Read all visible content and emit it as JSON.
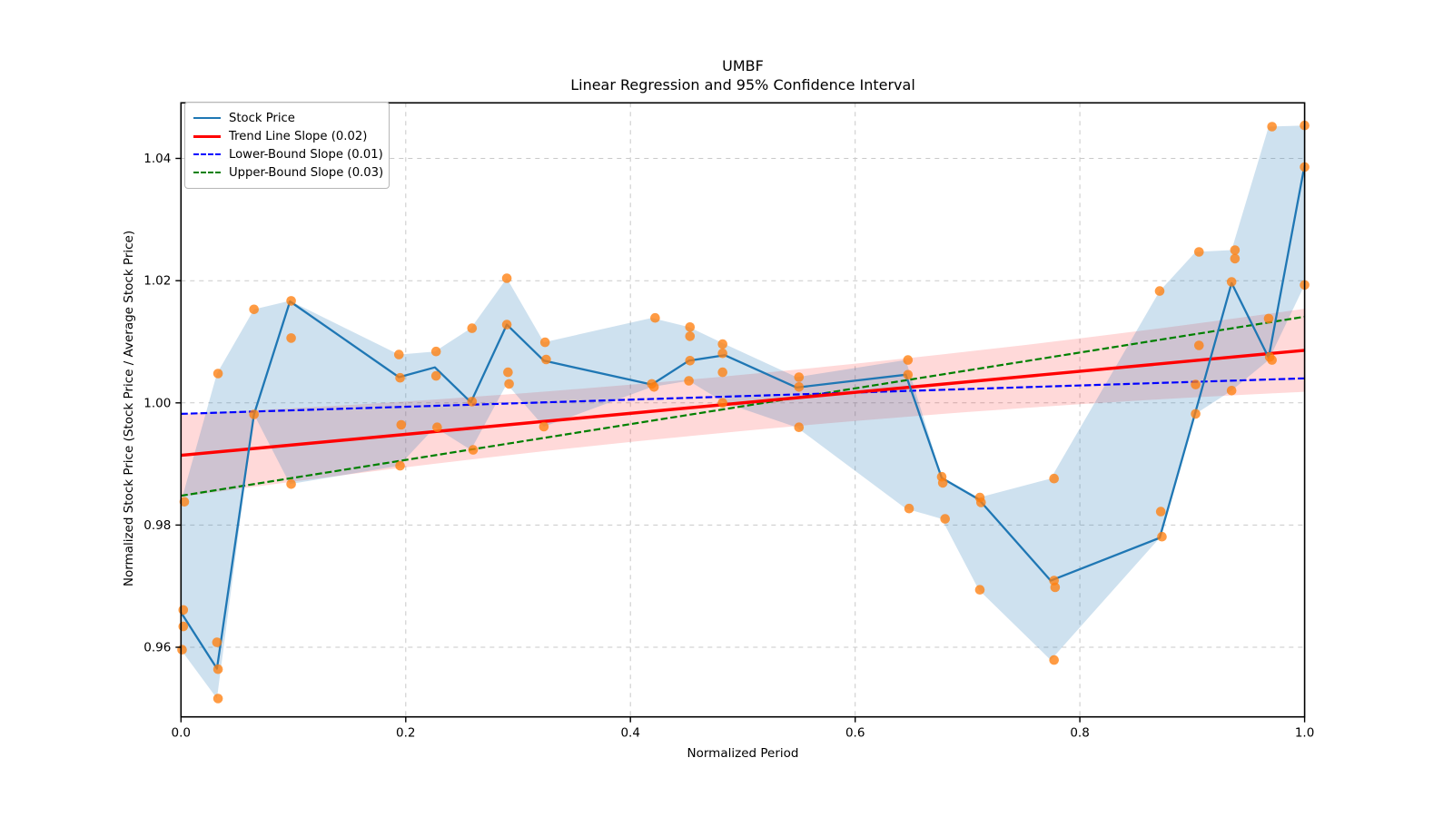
{
  "figure": {
    "title_line1": "UMBF",
    "title_line2": "Linear Regression and 95% Confidence Interval",
    "xlabel": "Normalized Period",
    "ylabel": "Normalized Stock Price (Stock Price / Average Stock Price)"
  },
  "chart_data": {
    "type": "line",
    "title": "UMBF\nLinear Regression and 95% Confidence Interval",
    "xlabel": "Normalized Period",
    "ylabel": "Normalized Stock Price (Stock Price / Average Stock Price)",
    "xlim": [
      0.0,
      1.0
    ],
    "ylim": [
      0.9486,
      1.0491
    ],
    "x_ticks": [
      0.0,
      0.2,
      0.4,
      0.6,
      0.8,
      1.0
    ],
    "x_tick_labels": [
      "0.0",
      "0.2",
      "0.4",
      "0.6",
      "0.8",
      "1.0"
    ],
    "y_ticks": [
      0.96,
      0.98,
      1.0,
      1.02,
      1.04
    ],
    "y_tick_labels": [
      "0.96",
      "0.98",
      "1.00",
      "1.02",
      "1.04"
    ],
    "grid": true,
    "legend_position": "upper left",
    "legend": [
      {
        "label": "Stock Price",
        "color": "#1f77b4",
        "style": "solid"
      },
      {
        "label": "Trend Line Slope (0.02)",
        "color": "#ff0000",
        "style": "solid-thick"
      },
      {
        "label": "Lower-Bound Slope (0.01)",
        "color": "#0000ff",
        "style": "dashed"
      },
      {
        "label": "Upper-Bound Slope (0.03)",
        "color": "#008000",
        "style": "dashed"
      }
    ],
    "colors": {
      "stock_line": "#1f77b4",
      "trend_line": "#ff0000",
      "lower_bound": "#0000ff",
      "upper_bound": "#008000",
      "scatter": "#ff7f0e",
      "stock_band_fill": "rgba(31,119,180,0.22)",
      "ci_band_fill": "rgba(255,0,0,0.15)",
      "grid_color": "#c9c9c9",
      "spine_color": "#000000"
    },
    "stock_price_line": [
      [
        0.0,
        0.9657
      ],
      [
        0.032,
        0.9565
      ],
      [
        0.065,
        0.9981
      ],
      [
        0.097,
        1.0166
      ],
      [
        0.194,
        1.0042
      ],
      [
        0.226,
        1.0058
      ],
      [
        0.258,
        1.0001
      ],
      [
        0.29,
        1.0128
      ],
      [
        0.323,
        1.0069
      ],
      [
        0.419,
        1.003
      ],
      [
        0.452,
        1.0069
      ],
      [
        0.484,
        1.0078
      ],
      [
        0.548,
        1.0025
      ],
      [
        0.645,
        1.0046
      ],
      [
        0.677,
        0.9877
      ],
      [
        0.71,
        0.9842
      ],
      [
        0.774,
        0.9709
      ],
      [
        0.871,
        0.9779
      ],
      [
        0.903,
        0.9986
      ],
      [
        0.935,
        1.0196
      ],
      [
        0.968,
        1.0074
      ],
      [
        1.0,
        1.0389
      ]
    ],
    "stock_band_min_max": [
      [
        0.0,
        0.9596,
        0.9838
      ],
      [
        0.032,
        0.9516,
        1.0048
      ],
      [
        0.065,
        0.9981,
        1.0153
      ],
      [
        0.097,
        0.9867,
        1.0167
      ],
      [
        0.194,
        0.9897,
        1.0079
      ],
      [
        0.226,
        0.996,
        1.0084
      ],
      [
        0.258,
        0.9923,
        1.0122
      ],
      [
        0.29,
        1.0031,
        1.0204
      ],
      [
        0.323,
        0.9961,
        1.0099
      ],
      [
        0.419,
        1.0026,
        1.0139
      ],
      [
        0.452,
        1.0036,
        1.0124
      ],
      [
        0.484,
        1.0,
        1.0096
      ],
      [
        0.548,
        0.996,
        1.0042
      ],
      [
        0.645,
        0.9827,
        1.007
      ],
      [
        0.677,
        0.981,
        0.9879
      ],
      [
        0.71,
        0.9694,
        0.9845
      ],
      [
        0.774,
        0.9579,
        0.9876
      ],
      [
        0.871,
        0.9779,
        1.0183
      ],
      [
        0.903,
        0.9982,
        1.0247
      ],
      [
        0.935,
        1.002,
        1.025
      ],
      [
        0.968,
        1.007,
        1.0452
      ],
      [
        1.0,
        1.0193,
        1.0454
      ]
    ],
    "scatter_points": [
      [
        0.003,
        0.9838
      ],
      [
        0.002,
        0.9661
      ],
      [
        0.002,
        0.9634
      ],
      [
        0.001,
        0.9596
      ],
      [
        0.033,
        1.0048
      ],
      [
        0.032,
        0.9608
      ],
      [
        0.033,
        0.9564
      ],
      [
        0.033,
        0.9516
      ],
      [
        0.065,
        1.0153
      ],
      [
        0.065,
        0.9981
      ],
      [
        0.098,
        1.0167
      ],
      [
        0.098,
        1.0106
      ],
      [
        0.098,
        0.9867
      ],
      [
        0.194,
        1.0079
      ],
      [
        0.195,
        1.0041
      ],
      [
        0.196,
        0.9964
      ],
      [
        0.195,
        0.9897
      ],
      [
        0.227,
        1.0084
      ],
      [
        0.227,
        1.0044
      ],
      [
        0.228,
        0.996
      ],
      [
        0.259,
        1.0122
      ],
      [
        0.259,
        1.0002
      ],
      [
        0.26,
        0.9923
      ],
      [
        0.29,
        1.0204
      ],
      [
        0.29,
        1.0128
      ],
      [
        0.291,
        1.005
      ],
      [
        0.292,
        1.0031
      ],
      [
        0.324,
        1.0099
      ],
      [
        0.325,
        1.0071
      ],
      [
        0.323,
        0.9961
      ],
      [
        0.422,
        1.0139
      ],
      [
        0.419,
        1.0031
      ],
      [
        0.421,
        1.0026
      ],
      [
        0.453,
        1.0124
      ],
      [
        0.453,
        1.0109
      ],
      [
        0.453,
        1.0069
      ],
      [
        0.452,
        1.0036
      ],
      [
        0.482,
        1.0096
      ],
      [
        0.482,
        1.0081
      ],
      [
        0.482,
        1.005
      ],
      [
        0.482,
        1.0
      ],
      [
        0.55,
        1.0042
      ],
      [
        0.55,
        1.0026
      ],
      [
        0.55,
        0.996
      ],
      [
        0.647,
        1.007
      ],
      [
        0.647,
        1.0046
      ],
      [
        0.648,
        0.9827
      ],
      [
        0.677,
        0.9879
      ],
      [
        0.678,
        0.9869
      ],
      [
        0.68,
        0.981
      ],
      [
        0.711,
        0.9845
      ],
      [
        0.712,
        0.9837
      ],
      [
        0.711,
        0.9694
      ],
      [
        0.777,
        0.9876
      ],
      [
        0.777,
        0.9709
      ],
      [
        0.778,
        0.9698
      ],
      [
        0.777,
        0.9579
      ],
      [
        0.871,
        1.0183
      ],
      [
        0.872,
        0.9822
      ],
      [
        0.873,
        0.9781
      ],
      [
        0.906,
        1.0247
      ],
      [
        0.906,
        1.0094
      ],
      [
        0.903,
        1.003
      ],
      [
        0.903,
        0.9982
      ],
      [
        0.938,
        1.025
      ],
      [
        0.938,
        1.0236
      ],
      [
        0.935,
        1.0198
      ],
      [
        0.935,
        1.002
      ],
      [
        0.971,
        1.0452
      ],
      [
        0.968,
        1.0138
      ],
      [
        0.969,
        1.0075
      ],
      [
        0.971,
        1.007
      ],
      [
        1.0,
        1.0454
      ],
      [
        1.0,
        1.0386
      ],
      [
        1.0,
        1.0193
      ]
    ],
    "trend_line": {
      "x": [
        0.0,
        1.0
      ],
      "y": [
        0.9914,
        1.0086
      ],
      "slope_label": 0.02
    },
    "lower_bound_line": {
      "x": [
        0.0,
        1.0
      ],
      "y": [
        0.9982,
        1.004
      ],
      "slope_label": 0.01
    },
    "upper_bound_line": {
      "x": [
        0.0,
        1.0
      ],
      "y": [
        0.9848,
        1.0141
      ],
      "slope_label": 0.03
    },
    "ci_band": {
      "center": "trend_line",
      "halfwidth_center": 0.0046,
      "halfwidth_edge": 0.0068
    }
  }
}
